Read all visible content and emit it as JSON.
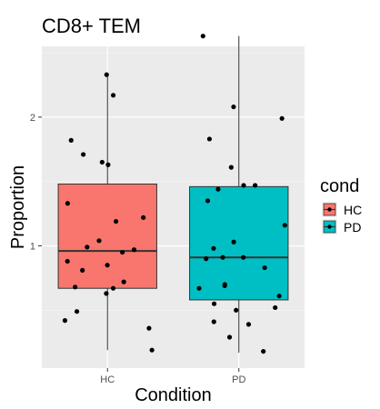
{
  "chart_data": {
    "type": "box",
    "title": "CD8+ TEM",
    "xlabel": "Condition",
    "ylabel": "Proportion",
    "categories": [
      "HC",
      "PD"
    ],
    "ylim": [
      0.05,
      2.55
    ],
    "y_ticks": [
      1,
      2
    ],
    "grid": "on",
    "legend": {
      "title": "cond",
      "position": "right",
      "entries": [
        {
          "label": "HC",
          "color": "#F8766D"
        },
        {
          "label": "PD",
          "color": "#00BFC4"
        }
      ]
    },
    "boxes": [
      {
        "category": "HC",
        "whisker_low": 0.19,
        "q1": 0.67,
        "median": 0.96,
        "q3": 1.48,
        "whisker_high": 2.32
      },
      {
        "category": "PD",
        "whisker_low": 0.17,
        "q1": 0.58,
        "median": 0.91,
        "q3": 1.46,
        "whisker_high": 2.63
      }
    ],
    "points": {
      "HC": [
        2.33,
        2.17,
        1.82,
        1.71,
        1.65,
        1.63,
        1.33,
        1.22,
        1.19,
        1.04,
        0.99,
        0.97,
        0.95,
        0.88,
        0.85,
        0.81,
        0.72,
        0.68,
        0.67,
        0.63,
        0.49,
        0.42,
        0.36,
        0.19
      ],
      "PD": [
        2.63,
        2.08,
        1.99,
        1.83,
        1.61,
        1.47,
        1.47,
        1.44,
        1.35,
        1.16,
        1.03,
        0.98,
        0.91,
        0.91,
        0.9,
        0.83,
        0.7,
        0.69,
        0.67,
        0.61,
        0.55,
        0.52,
        0.5,
        0.41,
        0.39,
        0.29,
        0.18
      ]
    }
  },
  "colors": {
    "panel_bg": "#EBEBEB",
    "grid_major": "#FFFFFF",
    "grid_minor": "#F5F5F5",
    "axis_text": "#4D4D4D",
    "point": "#000000"
  }
}
